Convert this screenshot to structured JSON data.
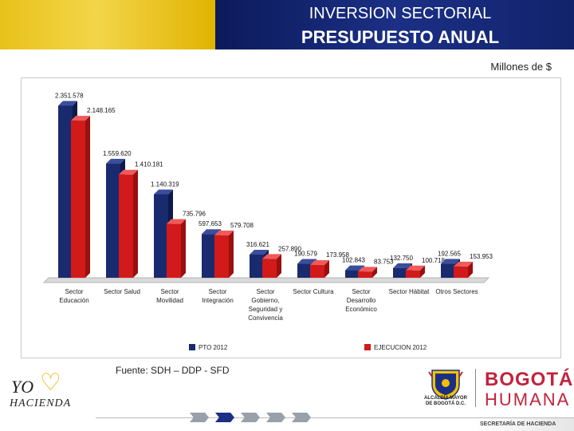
{
  "header": {
    "title_line1": "INVERSION SECTORIAL",
    "title_line2": "PRESUPUESTO ANUAL"
  },
  "units_label": "Millones de $",
  "source": "Fuente: SDH – DDP - SFD",
  "colors": {
    "series1": "#1a2a6e",
    "series2": "#d21a1a",
    "gold": "#e8c21a",
    "navy": "#12236c"
  },
  "chart_data": {
    "type": "bar",
    "title": "",
    "xlabel": "",
    "ylabel": "",
    "ylim": [
      0,
      2400000
    ],
    "categories": [
      [
        "Sector",
        "Educación"
      ],
      [
        "Sector Salud"
      ],
      [
        "Sector",
        "Movilidad"
      ],
      [
        "Sector",
        "Integración"
      ],
      [
        "Sector",
        "Gobierno,",
        "Seguridad y",
        "Convivencia"
      ],
      [
        "Sector Cultura"
      ],
      [
        "Sector",
        "Desarrollo",
        "Económico"
      ],
      [
        "Sector Hábitat"
      ],
      [
        "Otros Sectores"
      ]
    ],
    "series": [
      {
        "name": "PTO 2012",
        "values": [
          2351578,
          1559620,
          1140319,
          597653,
          316621,
          190579,
          102843,
          132750,
          192565
        ],
        "labels": [
          "2.351.578",
          "1.559.620",
          "1.140.319",
          "597.653",
          "316.621",
          "190.579",
          "102.843",
          "132.750",
          "192.565"
        ]
      },
      {
        "name": "EJECUCION 2012",
        "values": [
          2148165,
          1410181,
          735796,
          579708,
          257890,
          173958,
          83753,
          100718,
          153953
        ],
        "labels": [
          "2.148.165",
          "1.410.181",
          "735.796",
          "579.708",
          "257.890",
          "173.958",
          "83.753",
          "100.718",
          "153.953"
        ]
      }
    ],
    "legend": [
      "PTO 2012",
      "EJECUCION 2012"
    ]
  },
  "logos": {
    "yo": "YO",
    "hacienda": "HACIENDA",
    "crest_text": "ALCALDÍA MAYOR DE BOGOTÁ D.C.",
    "bogota": "BOGOTÁ",
    "humana": "HUMANA",
    "secretaria": "SECRETARÍA DE HACIENDA"
  }
}
